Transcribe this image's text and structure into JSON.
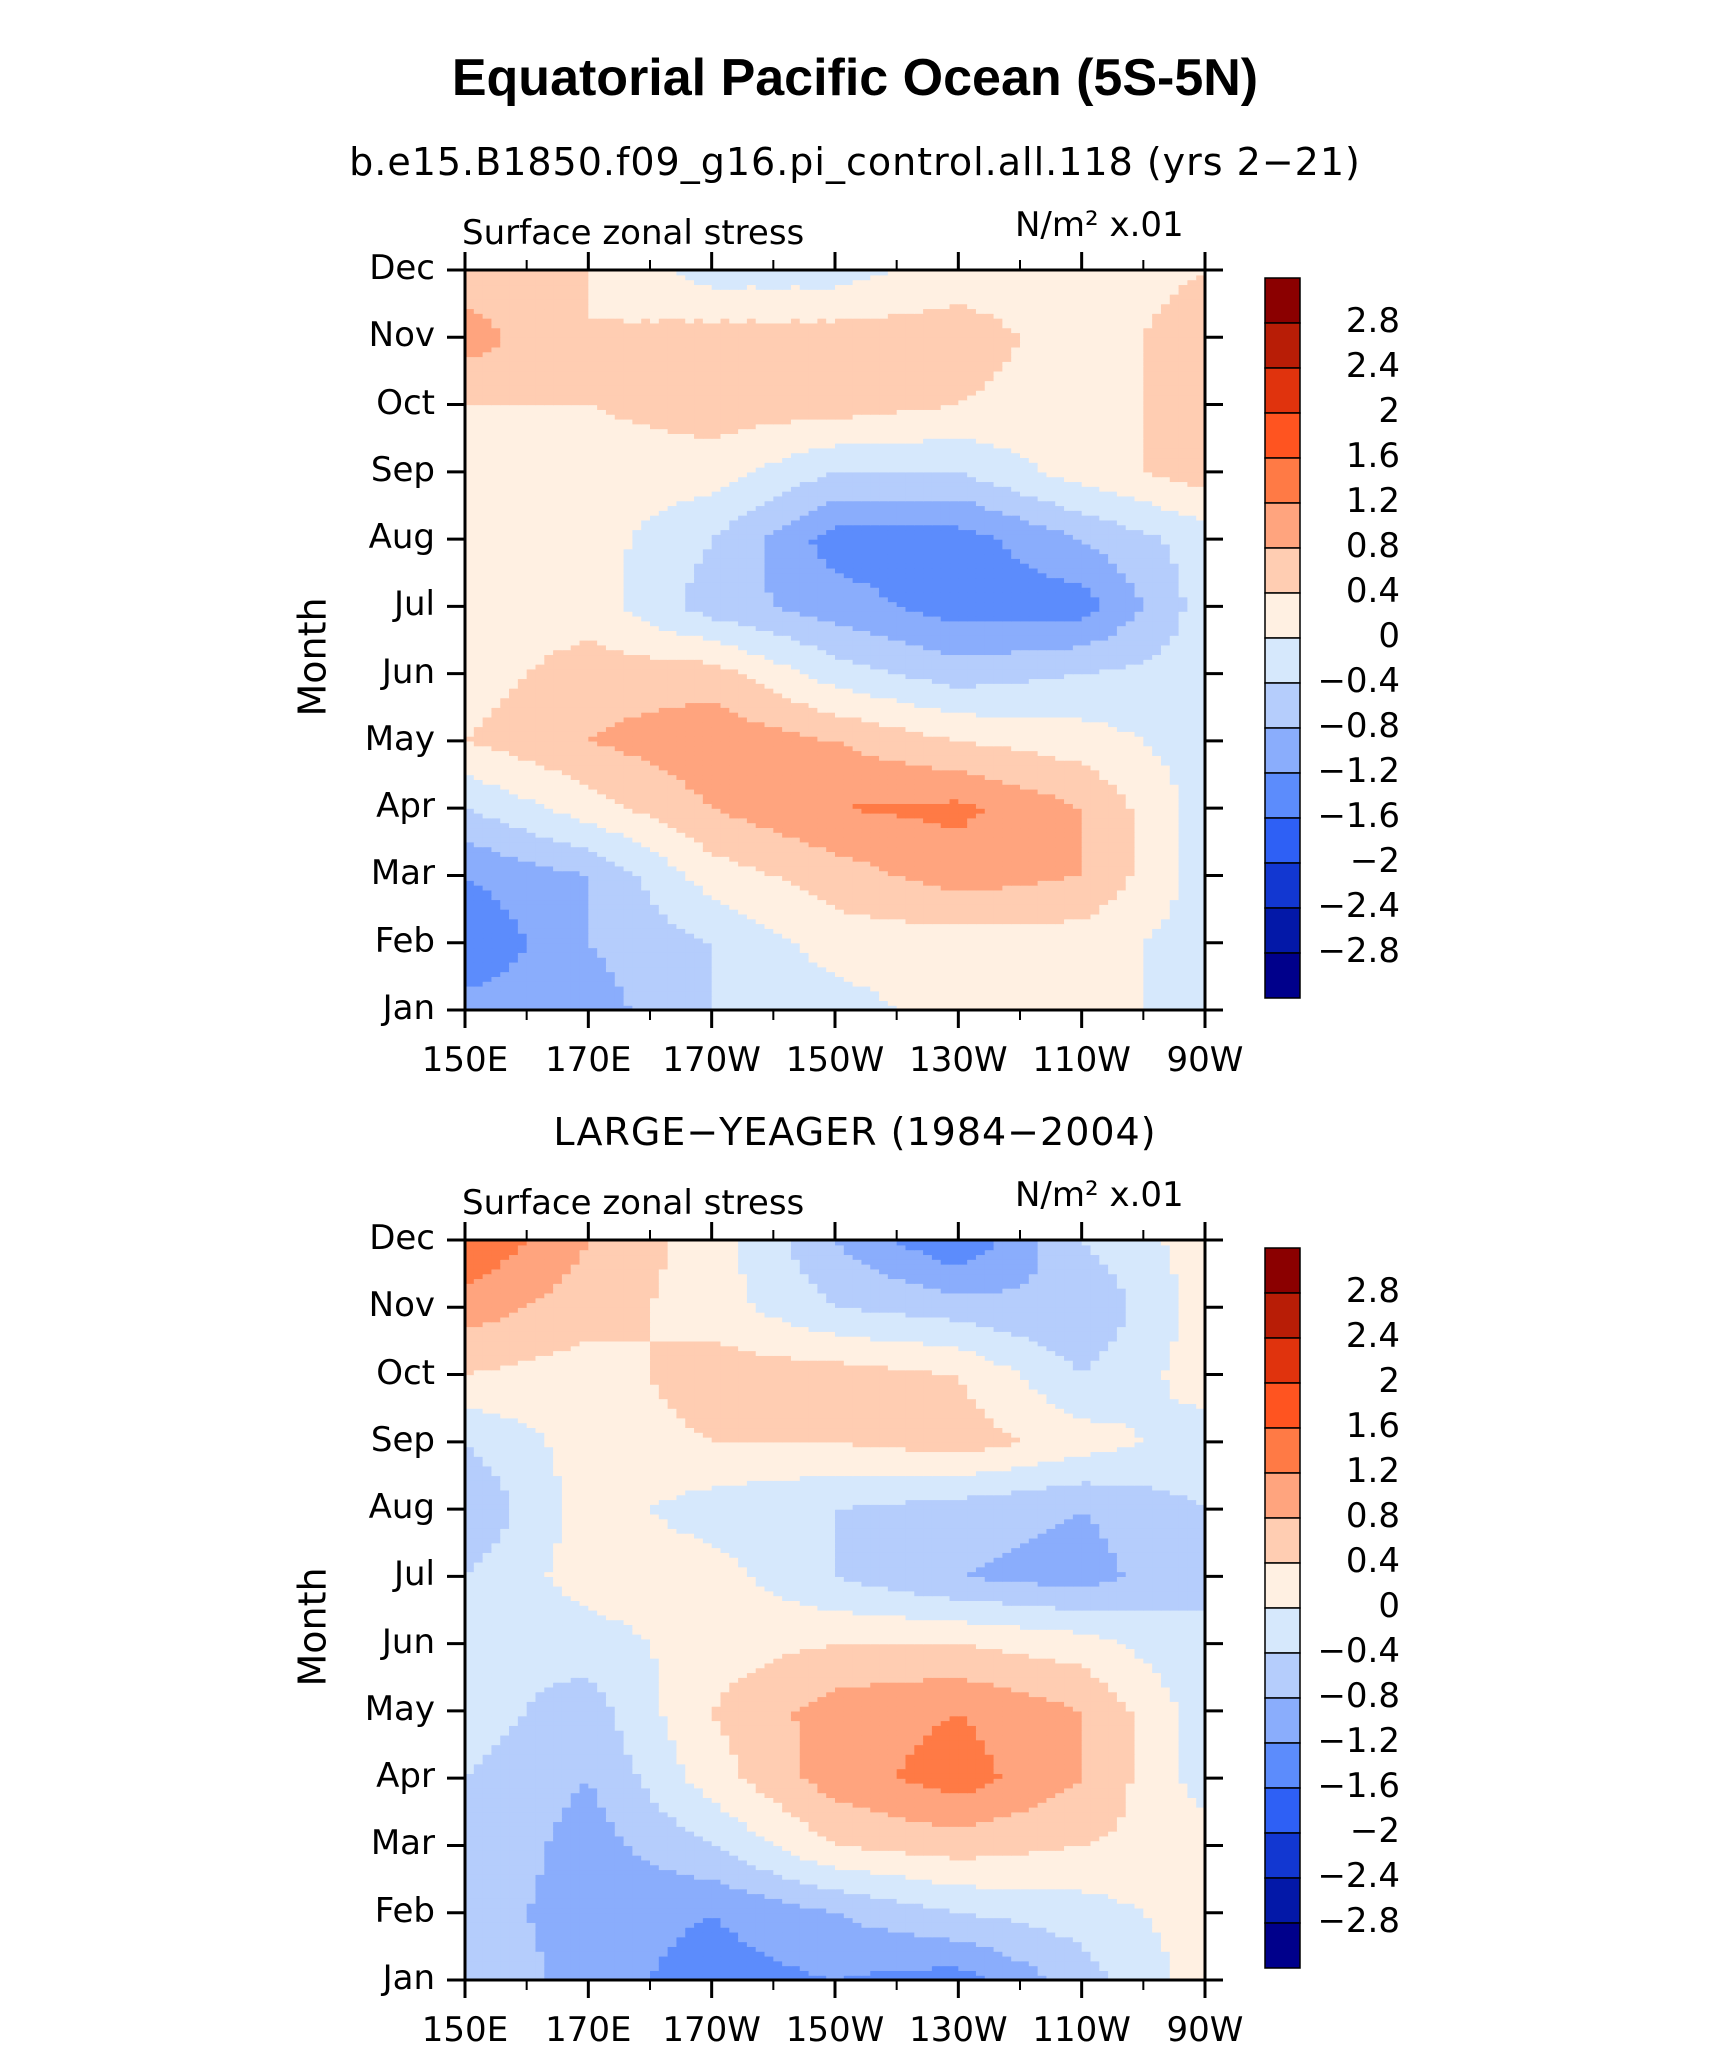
{
  "title": "Equatorial Pacific Ocean (5S-5N)",
  "colorbar_levels": [
    "2.8",
    "2.4",
    "2",
    "1.6",
    "1.2",
    "0.8",
    "0.4",
    "0",
    "−0.4",
    "−0.8",
    "−1.2",
    "−1.6",
    "−2",
    "−2.4",
    "−2.8"
  ],
  "colorbar_colors": [
    "#8b0000",
    "#b81d06",
    "#e0330d",
    "#ff5420",
    "#ff7a45",
    "#ffa47e",
    "#ffcdb2",
    "#fff0e2",
    "#d6e8fc",
    "#b5cdfc",
    "#8aadfc",
    "#5c8cfc",
    "#2e60f5",
    "#1237d1",
    "#0318a8",
    "#00008b"
  ],
  "chart_data": [
    {
      "type": "heatmap",
      "subtitle": "b.e15.B1850.f09_g16.pi_control.all.118 (yrs 2−21)",
      "variable": "Surface zonal stress",
      "units": "N/m² x.01",
      "xlabel": "",
      "ylabel": "Month",
      "x": [
        "150E",
        "170E",
        "170W",
        "150W",
        "130W",
        "110W",
        "90W"
      ],
      "y": [
        "Jan",
        "Feb",
        "Mar",
        "Apr",
        "May",
        "Jun",
        "Jul",
        "Aug",
        "Sep",
        "Oct",
        "Nov",
        "Dec"
      ],
      "values": [
        [
          -1.0,
          -1.0,
          -0.4,
          -0.2,
          0.2,
          0.2,
          -0.2
        ],
        [
          -1.6,
          -0.8,
          -0.4,
          0.2,
          0.2,
          0.2,
          -0.2
        ],
        [
          -1.2,
          -0.8,
          0.2,
          0.6,
          1.0,
          0.8,
          -0.2
        ],
        [
          -0.4,
          0.2,
          0.8,
          1.2,
          1.3,
          0.8,
          -0.2
        ],
        [
          0.4,
          0.8,
          1.1,
          0.8,
          0.4,
          0.2,
          -0.2
        ],
        [
          0.2,
          0.6,
          0.6,
          -0.2,
          -0.6,
          -0.4,
          -0.2
        ],
        [
          0.2,
          0.2,
          -0.6,
          -1.0,
          -1.4,
          -1.4,
          -0.2
        ],
        [
          0.2,
          0.2,
          -0.4,
          -1.4,
          -1.4,
          -0.8,
          -0.2
        ],
        [
          0.2,
          0.2,
          0.2,
          -0.4,
          -0.4,
          0.2,
          0.6
        ],
        [
          0.4,
          0.4,
          0.6,
          0.6,
          0.4,
          0.2,
          0.6
        ],
        [
          1.0,
          0.4,
          0.6,
          0.6,
          0.6,
          0.2,
          0.6
        ],
        [
          0.6,
          0.4,
          -0.2,
          -0.2,
          0.2,
          0.2,
          0.4
        ]
      ],
      "zlim": [
        -3,
        3
      ]
    },
    {
      "type": "heatmap",
      "subtitle": "LARGE−YEAGER (1984−2004)",
      "variable": "Surface zonal stress",
      "units": "N/m² x.01",
      "xlabel": "",
      "ylabel": "Month",
      "x": [
        "150E",
        "170E",
        "170W",
        "150W",
        "130W",
        "110W",
        "90W"
      ],
      "y": [
        "Jan",
        "Feb",
        "Mar",
        "Apr",
        "May",
        "Jun",
        "Jul",
        "Aug",
        "Sep",
        "Oct",
        "Nov",
        "Dec"
      ],
      "values": [
        [
          -0.4,
          -1.0,
          -1.4,
          -1.2,
          -1.4,
          -0.6,
          0.2
        ],
        [
          -0.6,
          -1.0,
          -1.2,
          -0.8,
          -0.4,
          -0.2,
          0.2
        ],
        [
          -0.4,
          -1.0,
          -0.4,
          0.4,
          0.6,
          0.4,
          0.2
        ],
        [
          -0.4,
          -0.8,
          0.2,
          1.0,
          1.4,
          0.8,
          -0.2
        ],
        [
          -0.2,
          -0.6,
          0.4,
          1.0,
          1.2,
          0.8,
          -0.2
        ],
        [
          -0.4,
          -0.2,
          0.2,
          0.4,
          0.4,
          0.2,
          -0.4
        ],
        [
          -0.4,
          0.2,
          0.2,
          -0.4,
          -0.8,
          -1.0,
          -0.4
        ],
        [
          -0.8,
          0.2,
          -0.2,
          -0.4,
          -0.6,
          -0.8,
          -0.4
        ],
        [
          -0.4,
          0.2,
          0.4,
          0.4,
          0.6,
          0.2,
          -0.2
        ],
        [
          0.4,
          0.2,
          0.6,
          0.6,
          0.4,
          -0.4,
          0.2
        ],
        [
          1.0,
          0.6,
          0.2,
          -0.4,
          -0.6,
          -0.8,
          0.2
        ],
        [
          1.6,
          0.8,
          0.2,
          -0.8,
          -1.6,
          -0.4,
          0.2
        ]
      ],
      "zlim": [
        -3,
        3
      ]
    }
  ]
}
